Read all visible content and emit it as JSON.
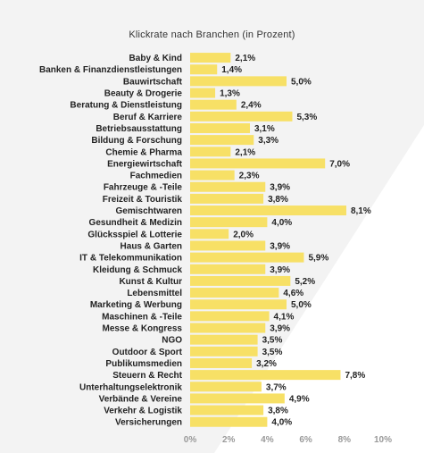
{
  "chart_data": {
    "type": "bar",
    "orientation": "horizontal",
    "title": "Klickrate nach Branchen (in Prozent)",
    "categories": [
      "Baby & Kind",
      "Banken & Finanzdienstleistungen",
      "Bauwirtschaft",
      "Beauty & Drogerie",
      "Beratung & Dienstleistung",
      "Beruf & Karriere",
      "Betriebsausstattung",
      "Bildung & Forschung",
      "Chemie & Pharma",
      "Energiewirtschaft",
      "Fachmedien",
      "Fahrzeuge & -Teile",
      "Freizeit & Touristik",
      "Gemischtwaren",
      "Gesundheit & Medizin",
      "Glücksspiel & Lotterie",
      "Haus & Garten",
      "IT & Telekommunikation",
      "Kleidung & Schmuck",
      "Kunst & Kultur",
      "Lebensmittel",
      "Marketing & Werbung",
      "Maschinen & -Teile",
      "Messe & Kongress",
      "NGO",
      "Outdoor & Sport",
      "Publikumsmedien",
      "Steuern & Recht",
      "Unterhaltungselektronik",
      "Verbände & Vereine",
      "Verkehr & Logistik",
      "Versicherungen"
    ],
    "values": [
      2.1,
      1.4,
      5.0,
      1.3,
      2.4,
      5.3,
      3.1,
      3.3,
      2.1,
      7.0,
      2.3,
      3.9,
      3.8,
      8.1,
      4.0,
      2.0,
      3.9,
      5.9,
      3.9,
      5.2,
      4.6,
      5.0,
      4.1,
      3.9,
      3.5,
      3.5,
      3.2,
      7.8,
      3.7,
      4.9,
      3.8,
      4.0
    ],
    "value_labels": [
      "2,1%",
      "1,4%",
      "5,0%",
      "1,3%",
      "2,4%",
      "5,3%",
      "3,1%",
      "3,3%",
      "2,1%",
      "7,0%",
      "2,3%",
      "3,9%",
      "3,8%",
      "8,1%",
      "4,0%",
      "2,0%",
      "3,9%",
      "5,9%",
      "3,9%",
      "5,2%",
      "4,6%",
      "5,0%",
      "4,1%",
      "3,9%",
      "3,5%",
      "3,5%",
      "3,2%",
      "7,8%",
      "3,7%",
      "4,9%",
      "3,8%",
      "4,0%"
    ],
    "xlim": [
      0,
      10
    ],
    "xticks": [
      0,
      2,
      4,
      6,
      8,
      10
    ],
    "xtick_labels": [
      "0%",
      "2%",
      "4%",
      "6%",
      "8%",
      "10%"
    ],
    "grid": false,
    "bar_color": "#f7e066",
    "background_color": "#f3f3f3",
    "wedge_color": "#ffffff"
  }
}
